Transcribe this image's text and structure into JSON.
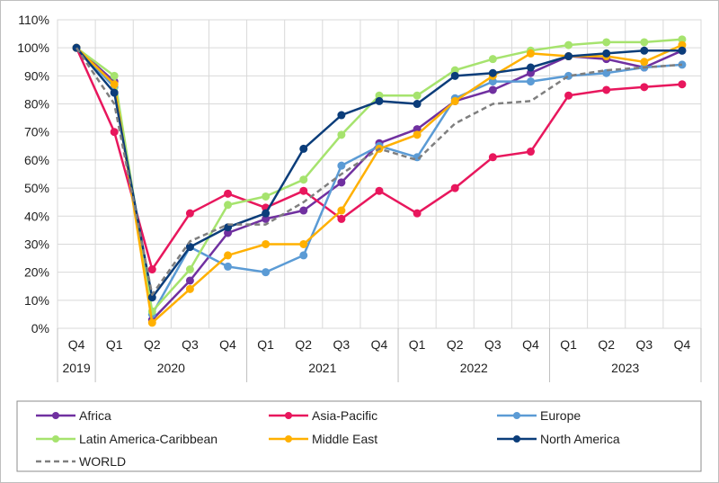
{
  "chart_data": {
    "type": "line",
    "title": "",
    "xlabel": "",
    "ylabel": "",
    "ylim": [
      0,
      110
    ],
    "yticks": [
      "0%",
      "10%",
      "20%",
      "30%",
      "40%",
      "50%",
      "60%",
      "70%",
      "80%",
      "90%",
      "100%",
      "110%"
    ],
    "quarters": [
      "Q4",
      "Q1",
      "Q2",
      "Q3",
      "Q4",
      "Q1",
      "Q2",
      "Q3",
      "Q4",
      "Q1",
      "Q2",
      "Q3",
      "Q4",
      "Q1",
      "Q2",
      "Q3",
      "Q4"
    ],
    "years": [
      {
        "label": "2019",
        "span": 1
      },
      {
        "label": "2020",
        "span": 4
      },
      {
        "label": "2021",
        "span": 4
      },
      {
        "label": "2022",
        "span": 4
      },
      {
        "label": "2023",
        "span": 4
      }
    ],
    "grid": true,
    "legend_position": "bottom",
    "series": [
      {
        "name": "Africa",
        "color": "#7030a0",
        "dashed": false,
        "markers": true,
        "values": [
          100,
          88,
          3,
          17,
          34,
          39,
          42,
          52,
          66,
          71,
          81,
          85,
          91,
          97,
          96,
          93,
          99
        ]
      },
      {
        "name": "Asia-Pacific",
        "color": "#e8175d",
        "dashed": false,
        "markers": true,
        "values": [
          100,
          70,
          21,
          41,
          48,
          43,
          49,
          39,
          49,
          41,
          50,
          61,
          63,
          83,
          85,
          86,
          87
        ]
      },
      {
        "name": "Europe",
        "color": "#5b9bd5",
        "dashed": false,
        "markers": true,
        "values": [
          100,
          86,
          5,
          29,
          22,
          20,
          26,
          58,
          65,
          61,
          82,
          88,
          88,
          90,
          91,
          93,
          94
        ]
      },
      {
        "name": "Latin America-Caribbean",
        "color": "#a6e36e",
        "dashed": false,
        "markers": true,
        "values": [
          100,
          90,
          6,
          21,
          44,
          47,
          53,
          69,
          83,
          83,
          92,
          96,
          99,
          101,
          102,
          102,
          103
        ]
      },
      {
        "name": "Middle East",
        "color": "#ffb000",
        "dashed": false,
        "markers": true,
        "values": [
          100,
          87,
          2,
          14,
          26,
          30,
          30,
          42,
          64,
          69,
          81,
          90,
          98,
          97,
          97,
          95,
          101
        ]
      },
      {
        "name": "North America",
        "color": "#0b3d7a",
        "dashed": false,
        "markers": true,
        "values": [
          100,
          84,
          11,
          29,
          36,
          41,
          64,
          76,
          81,
          80,
          90,
          91,
          93,
          97,
          98,
          99,
          99
        ]
      },
      {
        "name": "WORLD",
        "color": "#7f7f7f",
        "dashed": true,
        "markers": false,
        "values": [
          100,
          80,
          12,
          31,
          37,
          37,
          45,
          55,
          64,
          60,
          73,
          80,
          81,
          90,
          92,
          93,
          94
        ]
      }
    ]
  }
}
